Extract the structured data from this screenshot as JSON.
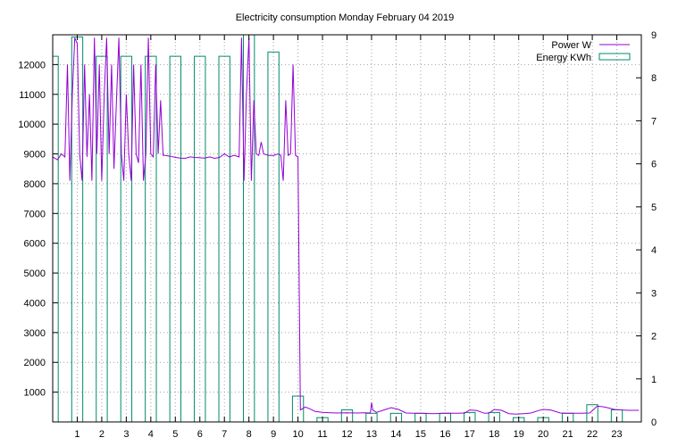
{
  "chart_data": {
    "type": "line",
    "title": "Electricity consumption Monday February 04 2019",
    "xlabel": "",
    "ylabel": "",
    "y2label": "",
    "xlim": [
      0,
      24
    ],
    "ylim": [
      0,
      13000
    ],
    "y2lim": [
      0,
      9
    ],
    "x_ticks": [
      1,
      2,
      3,
      4,
      5,
      6,
      7,
      8,
      9,
      10,
      11,
      12,
      13,
      14,
      15,
      16,
      17,
      18,
      19,
      20,
      21,
      22,
      23
    ],
    "y_ticks": [
      1000,
      2000,
      3000,
      4000,
      5000,
      6000,
      7000,
      8000,
      9000,
      10000,
      11000,
      12000
    ],
    "y2_ticks": [
      0,
      1,
      2,
      3,
      4,
      5,
      6,
      7,
      8,
      9
    ],
    "grid": true,
    "legend_position": "top-right",
    "series": [
      {
        "name": "Power W",
        "color": "#9400d3",
        "axis": "y",
        "x": [
          0.0,
          0.2,
          0.35,
          0.5,
          0.6,
          0.7,
          0.8,
          0.9,
          1.0,
          1.1,
          1.2,
          1.3,
          1.4,
          1.5,
          1.6,
          1.7,
          1.8,
          1.9,
          2.0,
          2.1,
          2.2,
          2.3,
          2.4,
          2.5,
          2.6,
          2.7,
          2.8,
          2.9,
          3.0,
          3.1,
          3.2,
          3.3,
          3.4,
          3.5,
          3.6,
          3.7,
          3.8,
          3.9,
          4.0,
          4.1,
          4.2,
          4.3,
          4.4,
          4.5,
          4.6,
          4.8,
          5.0,
          5.2,
          5.4,
          5.6,
          5.8,
          6.0,
          6.2,
          6.4,
          6.6,
          6.8,
          7.0,
          7.2,
          7.4,
          7.6,
          7.7,
          7.8,
          7.9,
          8.0,
          8.1,
          8.2,
          8.3,
          8.4,
          8.5,
          8.6,
          8.8,
          9.0,
          9.2,
          9.3,
          9.4,
          9.5,
          9.6,
          9.7,
          9.8,
          9.9,
          10.0,
          10.1,
          10.3,
          10.5,
          10.7,
          11.0,
          11.3,
          11.6,
          12.0,
          12.4,
          12.7,
          12.95,
          13.0,
          13.05,
          13.2,
          13.5,
          13.8,
          14.1,
          14.4,
          14.7,
          15.0,
          15.5,
          16.0,
          16.5,
          16.8,
          17.0,
          17.3,
          17.6,
          17.8,
          18.0,
          18.3,
          18.6,
          18.9,
          19.2,
          19.5,
          19.8,
          20.0,
          20.3,
          20.7,
          21.0,
          21.5,
          21.9,
          22.2,
          22.5,
          22.9,
          23.2,
          23.5,
          23.9
        ],
        "y": [
          8900,
          8800,
          9000,
          8900,
          12000,
          8100,
          11000,
          12900,
          12700,
          9000,
          8100,
          12000,
          8900,
          11000,
          8100,
          12900,
          9000,
          12000,
          8100,
          11000,
          12900,
          9000,
          12000,
          8500,
          10800,
          12900,
          9000,
          8100,
          11000,
          9000,
          8100,
          12000,
          9000,
          8700,
          12000,
          8100,
          9000,
          12900,
          9000,
          8900,
          12000,
          9000,
          10800,
          8950,
          8950,
          8920,
          8880,
          8860,
          8850,
          8900,
          8880,
          8870,
          8860,
          8900,
          8850,
          8880,
          9000,
          8900,
          8950,
          8900,
          12900,
          8100,
          11000,
          12900,
          8100,
          10800,
          9000,
          8950,
          9400,
          9000,
          8950,
          8950,
          9000,
          8950,
          8100,
          10800,
          8950,
          9000,
          12000,
          8950,
          8900,
          400,
          500,
          430,
          350,
          320,
          310,
          300,
          310,
          300,
          310,
          300,
          650,
          400,
          320,
          400,
          480,
          420,
          300,
          290,
          290,
          280,
          290,
          290,
          300,
          400,
          380,
          290,
          300,
          420,
          390,
          280,
          260,
          280,
          300,
          380,
          420,
          400,
          300,
          290,
          290,
          300,
          530,
          500,
          420,
          400,
          390,
          390
        ]
      },
      {
        "name": "Energy KWh",
        "color": "#008b6b",
        "axis": "y2",
        "type": "bar",
        "x": [
          0,
          1,
          2,
          3,
          4,
          5,
          6,
          7,
          8,
          9,
          10,
          11,
          12,
          13,
          14,
          15,
          16,
          17,
          18,
          19,
          20,
          21,
          22,
          23
        ],
        "values": [
          8.5,
          8.95,
          8.5,
          8.5,
          8.5,
          8.5,
          8.5,
          8.5,
          9.0,
          8.6,
          0.6,
          0.1,
          0.28,
          0.2,
          0.2,
          0.2,
          0.2,
          0.22,
          0.22,
          0.1,
          0.1,
          0.2,
          0.4,
          0.28
        ]
      }
    ]
  }
}
